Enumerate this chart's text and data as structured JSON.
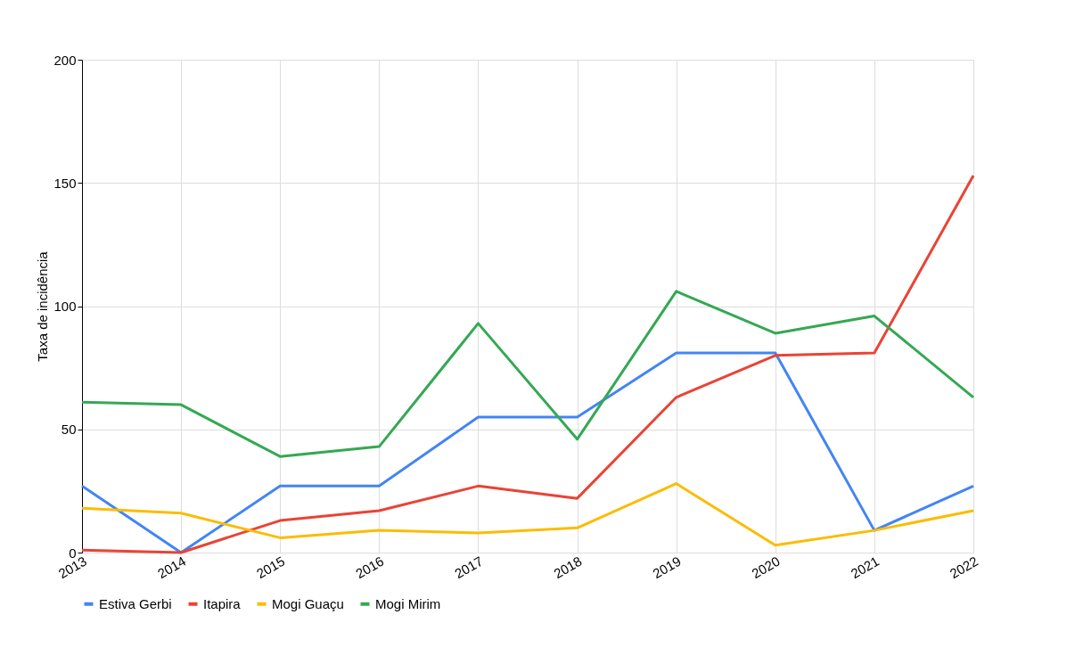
{
  "chart_data": {
    "type": "line",
    "ylabel": "Taxa de incidência",
    "categories": [
      "2013",
      "2014",
      "2015",
      "2016",
      "2017",
      "2018",
      "2019",
      "2020",
      "2021",
      "2022"
    ],
    "series": [
      {
        "name": "Estiva Gerbi",
        "color": "#4285f4",
        "values": [
          27,
          0,
          27,
          27,
          55,
          55,
          81,
          81,
          9,
          27
        ]
      },
      {
        "name": "Itapira",
        "color": "#ea4335",
        "values": [
          1,
          0,
          13,
          17,
          27,
          22,
          63,
          80,
          81,
          153
        ]
      },
      {
        "name": "Mogi Guaçu",
        "color": "#fbbc04",
        "values": [
          18,
          16,
          6,
          9,
          8,
          10,
          28,
          3,
          9,
          17
        ]
      },
      {
        "name": "Mogi Mirim",
        "color": "#34a853",
        "values": [
          61,
          60,
          39,
          43,
          93,
          46,
          106,
          89,
          96,
          63
        ]
      }
    ],
    "ylim": [
      0,
      200
    ],
    "yticks": [
      0,
      50,
      100,
      150,
      200
    ],
    "grid": true,
    "legend": "bottom",
    "line_style": "solid"
  }
}
